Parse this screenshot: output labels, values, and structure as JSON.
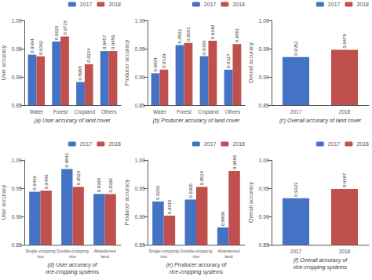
{
  "chart_data": [
    {
      "type": "bar",
      "title": "(a) User accuracy of land cover",
      "ylabel": "User accuracy",
      "categories": [
        "Water",
        "Forest",
        "Cropland",
        "Others"
      ],
      "series": [
        {
          "name": "2017",
          "color": "#4472C4",
          "values": [
            0.9394,
            0.9626,
            0.8908,
            0.9457
          ],
          "value_labels": [
            "0.9394",
            "0.9626",
            "0.8908",
            "0.9457"
          ]
        },
        {
          "name": "2018",
          "color": "#C0504D",
          "values": [
            0.9362,
            0.9715,
            0.9224,
            0.9459
          ],
          "value_labels": [
            "0.9362",
            "0.9715",
            "0.9224",
            "0.9459"
          ]
        }
      ],
      "ylim": [
        0.85,
        1.0
      ],
      "yticks": [
        0.85,
        {
          "value": 0.9,
          "label": "0.90"
        },
        0.95,
        {
          "value": 1.0,
          "label": "1.00"
        }
      ],
      "grid": false,
      "legend": "upper right",
      "data_labels": true
    },
    {
      "type": "bar",
      "title": "(b) Producer accuracy of land cover",
      "ylabel": "Producer accuracy",
      "categories": [
        "Water",
        "Forest",
        "Cropland",
        "Others"
      ],
      "series": [
        {
          "name": "2017",
          "color": "#4472C4",
          "values": [
            0.9064,
            0.9563,
            0.9366,
            0.9127
          ],
          "value_labels": [
            "0.9064",
            "0.9563",
            "0.9366",
            "0.9127"
          ]
        },
        {
          "name": "2018",
          "color": "#C0504D",
          "values": [
            0.9129,
            0.9601,
            0.964,
            0.9581
          ],
          "value_labels": [
            "0.9129",
            "0.9601",
            "0.9640",
            "0.9581"
          ]
        }
      ],
      "ylim": [
        0.85,
        1.0
      ],
      "yticks": [
        0.85,
        {
          "value": 0.9,
          "label": "0.90"
        },
        0.95,
        {
          "value": 1.0,
          "label": "1.00"
        }
      ],
      "grid": false,
      "legend": "upper right",
      "data_labels": true
    },
    {
      "type": "bar",
      "title": "(c) Overall accuracy of land cover",
      "ylabel": "Overall accuracy",
      "categories": [
        "2017",
        "2018"
      ],
      "series": [
        {
          "name": "2017",
          "color": "#4472C4",
          "values": [
            0.9352,
            null
          ],
          "value_labels": [
            "0.9352",
            null
          ]
        },
        {
          "name": "2018",
          "color": "#C0504D",
          "values": [
            null,
            0.9478
          ],
          "value_labels": [
            null,
            "0.9478"
          ]
        }
      ],
      "ylim": [
        0.85,
        1.0
      ],
      "yticks": [
        0.85,
        {
          "value": 0.9,
          "label": "0.90"
        },
        0.95,
        {
          "value": 1.0,
          "label": "1.00"
        }
      ],
      "grid": false,
      "legend": "upper right",
      "data_labels": true
    },
    {
      "type": "bar",
      "title": "(d) User accuracy of\nrice-cropping systems",
      "ylabel": "User accuracy",
      "categories": [
        "Single-cropping\nrice",
        "Double-cropping\nrice",
        "Abandoned\nland"
      ],
      "series": [
        {
          "name": "2017",
          "color": "#4472C4",
          "values": [
            0.9439,
            0.9842,
            0.9398
          ],
          "value_labels": [
            "0.9439",
            "0.9842",
            "0.9398"
          ]
        },
        {
          "name": "2018",
          "color": "#C0504D",
          "values": [
            0.946,
            0.9524,
            0.9396
          ],
          "value_labels": [
            "0.9460",
            "0.9524",
            "0.9396"
          ]
        }
      ],
      "ylim": [
        0.85,
        1.0
      ],
      "yticks": [
        0.85,
        {
          "value": 0.9,
          "label": "0.90"
        },
        0.95,
        {
          "value": 1.0,
          "label": "1.00"
        }
      ],
      "grid": false,
      "legend": "upper right",
      "data_labels": true
    },
    {
      "type": "bar",
      "title": "(e) Producer accuracy of\nrice-cropping systems",
      "ylabel": "Producer accuracy",
      "categories": [
        "Single-cropping\nrice",
        "Double-cropping\nrice",
        "Abandoned\nland"
      ],
      "series": [
        {
          "name": "2017",
          "color": "#4472C4",
          "values": [
            0.9266,
            0.93,
            0.8806
          ],
          "value_labels": [
            "0.9266",
            "0.9300",
            "0.8806"
          ]
        },
        {
          "name": "2018",
          "color": "#C0504D",
          "values": [
            0.9015,
            0.9524,
            0.9806
          ],
          "value_labels": [
            "0.9015",
            "0.9524",
            "0.9806"
          ]
        }
      ],
      "ylim": [
        0.85,
        1.0
      ],
      "yticks": [
        0.85,
        {
          "value": 0.9,
          "label": "0.90"
        },
        0.95,
        {
          "value": 1.0,
          "label": "1.00"
        }
      ],
      "grid": false,
      "legend": "upper right",
      "data_labels": true
    },
    {
      "type": "bar",
      "title": "(f) Overall accuracy of\nrice-cropping systems",
      "ylabel": "Overall accuracy",
      "categories": [
        "2017",
        "2018"
      ],
      "series": [
        {
          "name": "2017",
          "color": "#4472C4",
          "values": [
            0.9323,
            null
          ],
          "value_labels": [
            "0.9323",
            null
          ]
        },
        {
          "name": "2018",
          "color": "#C0504D",
          "values": [
            null,
            0.9487
          ],
          "value_labels": [
            null,
            "0.9487"
          ]
        }
      ],
      "ylim": [
        0.85,
        1.0
      ],
      "yticks": [
        0.85,
        {
          "value": 0.9,
          "label": "0.90"
        },
        0.95,
        {
          "value": 1.0,
          "label": "1.00"
        }
      ],
      "grid": false,
      "legend": "upper right",
      "data_labels": true
    }
  ]
}
